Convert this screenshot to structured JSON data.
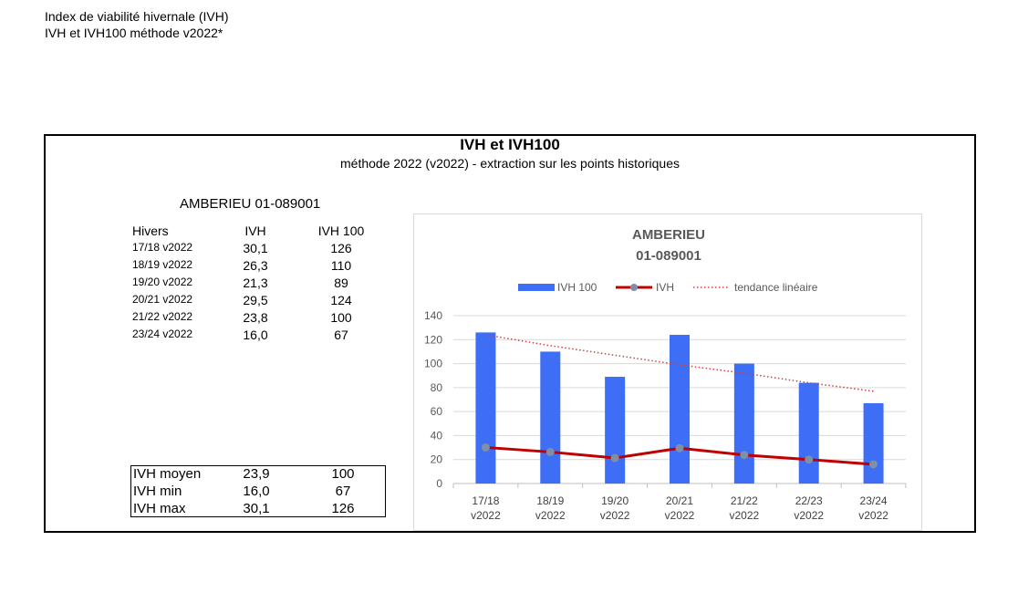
{
  "header": {
    "line1": "Index de viabilité hivernale (IVH)",
    "line2": "IVH et IVH100 méthode v2022*"
  },
  "frame": {
    "title": "IVH et IVH100",
    "subtitle": "méthode 2022 (v2022) - extraction sur les points historiques",
    "station": "AMBERIEU  01-089001"
  },
  "table": {
    "headers": [
      "Hivers",
      "IVH",
      "IVH 100"
    ],
    "rows": [
      {
        "hiver": "17/18 v2022",
        "ivh": "30,1",
        "ivh100": "126"
      },
      {
        "hiver": "18/19 v2022",
        "ivh": "26,3",
        "ivh100": "110"
      },
      {
        "hiver": "19/20 v2022",
        "ivh": "21,3",
        "ivh100": "89"
      },
      {
        "hiver": "20/21 v2022",
        "ivh": "29,5",
        "ivh100": "124"
      },
      {
        "hiver": "21/22 v2022",
        "ivh": "23,8",
        "ivh100": "100"
      },
      {
        "hiver": "23/24 v2022",
        "ivh": "16,0",
        "ivh100": "67"
      }
    ]
  },
  "summary": {
    "rows": [
      {
        "label": "IVH moyen",
        "ivh": "23,9",
        "ivh100": "100"
      },
      {
        "label": "IVH min",
        "ivh": "16,0",
        "ivh100": "67"
      },
      {
        "label": "IVH max",
        "ivh": "30,1",
        "ivh100": "126"
      }
    ]
  },
  "colors": {
    "bar": "#3d6ef5",
    "line": "#c00000",
    "marker": "#7f8fa6",
    "trend": "#d04040",
    "grid": "#d9d9d9",
    "axis_text": "#595959"
  },
  "chart_data": {
    "type": "bar",
    "title": [
      "AMBERIEU",
      "01-089001"
    ],
    "categories": [
      [
        "17/18",
        "v2022"
      ],
      [
        "18/19",
        "v2022"
      ],
      [
        "19/20",
        "v2022"
      ],
      [
        "20/21",
        "v2022"
      ],
      [
        "21/22",
        "v2022"
      ],
      [
        "22/23",
        "v2022"
      ],
      [
        "23/24",
        "v2022"
      ]
    ],
    "series": [
      {
        "name": "IVH 100",
        "kind": "bar",
        "values": [
          126,
          110,
          89,
          124,
          100,
          84,
          67
        ]
      },
      {
        "name": "IVH",
        "kind": "line",
        "values": [
          30.1,
          26.3,
          21.3,
          29.5,
          23.8,
          20,
          16
        ]
      },
      {
        "name": "tendance linéaire",
        "kind": "trend",
        "values": [
          124,
          115,
          107,
          99,
          92,
          84,
          77
        ]
      }
    ],
    "ylim": [
      0,
      140
    ],
    "yticks": [
      0,
      20,
      40,
      60,
      80,
      100,
      120,
      140
    ],
    "grid": true,
    "legend_position": "top"
  }
}
